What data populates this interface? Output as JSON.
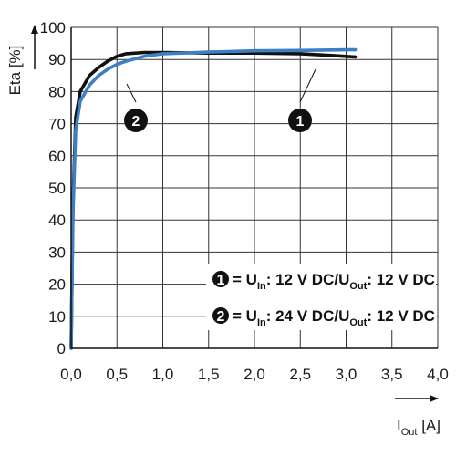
{
  "chart_data": {
    "type": "line",
    "xlabel": {
      "main": "I",
      "sub": "Out",
      "unit": " [A]"
    },
    "ylabel": "Eta [%]",
    "xlim": [
      0,
      4
    ],
    "ylim": [
      0,
      100
    ],
    "x_ticks": [
      "0,0",
      "0,5",
      "1,0",
      "1,5",
      "2,0",
      "2,5",
      "3,0",
      "3,5",
      "4,0"
    ],
    "y_ticks": [
      "0",
      "10",
      "20",
      "30",
      "40",
      "50",
      "60",
      "70",
      "80",
      "90",
      "100"
    ],
    "grid": true,
    "legend_position": "bottom-right",
    "colors": {
      "series1": "#111111",
      "series2": "#3d7fc0",
      "grid": "#333333"
    },
    "series": [
      {
        "marker": "1",
        "label_parts": [
          {
            "t": "= U",
            "sub": false
          },
          {
            "t": "In",
            "sub": true
          },
          {
            "t": ": 12 V DC/U",
            "sub": false
          },
          {
            "t": "Out",
            "sub": true
          },
          {
            "t": ": 12 V DC",
            "sub": false
          }
        ],
        "points": [
          [
            0,
            0
          ],
          [
            0.02,
            45
          ],
          [
            0.05,
            72
          ],
          [
            0.1,
            80
          ],
          [
            0.2,
            85
          ],
          [
            0.3,
            87.5
          ],
          [
            0.4,
            89.5
          ],
          [
            0.5,
            91
          ],
          [
            0.6,
            91.8
          ],
          [
            0.8,
            92.2
          ],
          [
            1.0,
            92.2
          ],
          [
            1.5,
            92
          ],
          [
            2.0,
            92
          ],
          [
            2.5,
            91.8
          ],
          [
            2.8,
            91.3
          ],
          [
            3.1,
            90.8
          ]
        ]
      },
      {
        "marker": "2",
        "label_parts": [
          {
            "t": "= U",
            "sub": false
          },
          {
            "t": "In",
            "sub": true
          },
          {
            "t": ": 24 V DC/U",
            "sub": false
          },
          {
            "t": "Out",
            "sub": true
          },
          {
            "t": ": 12 V DC",
            "sub": false
          }
        ],
        "points": [
          [
            0,
            0
          ],
          [
            0.02,
            42
          ],
          [
            0.05,
            68
          ],
          [
            0.1,
            77
          ],
          [
            0.2,
            82
          ],
          [
            0.3,
            85
          ],
          [
            0.4,
            87
          ],
          [
            0.5,
            88.5
          ],
          [
            0.6,
            89.5
          ],
          [
            0.8,
            91
          ],
          [
            1.0,
            91.8
          ],
          [
            1.5,
            92.3
          ],
          [
            2.0,
            92.7
          ],
          [
            2.5,
            92.8
          ],
          [
            3.0,
            93
          ],
          [
            3.1,
            93
          ]
        ]
      }
    ]
  }
}
